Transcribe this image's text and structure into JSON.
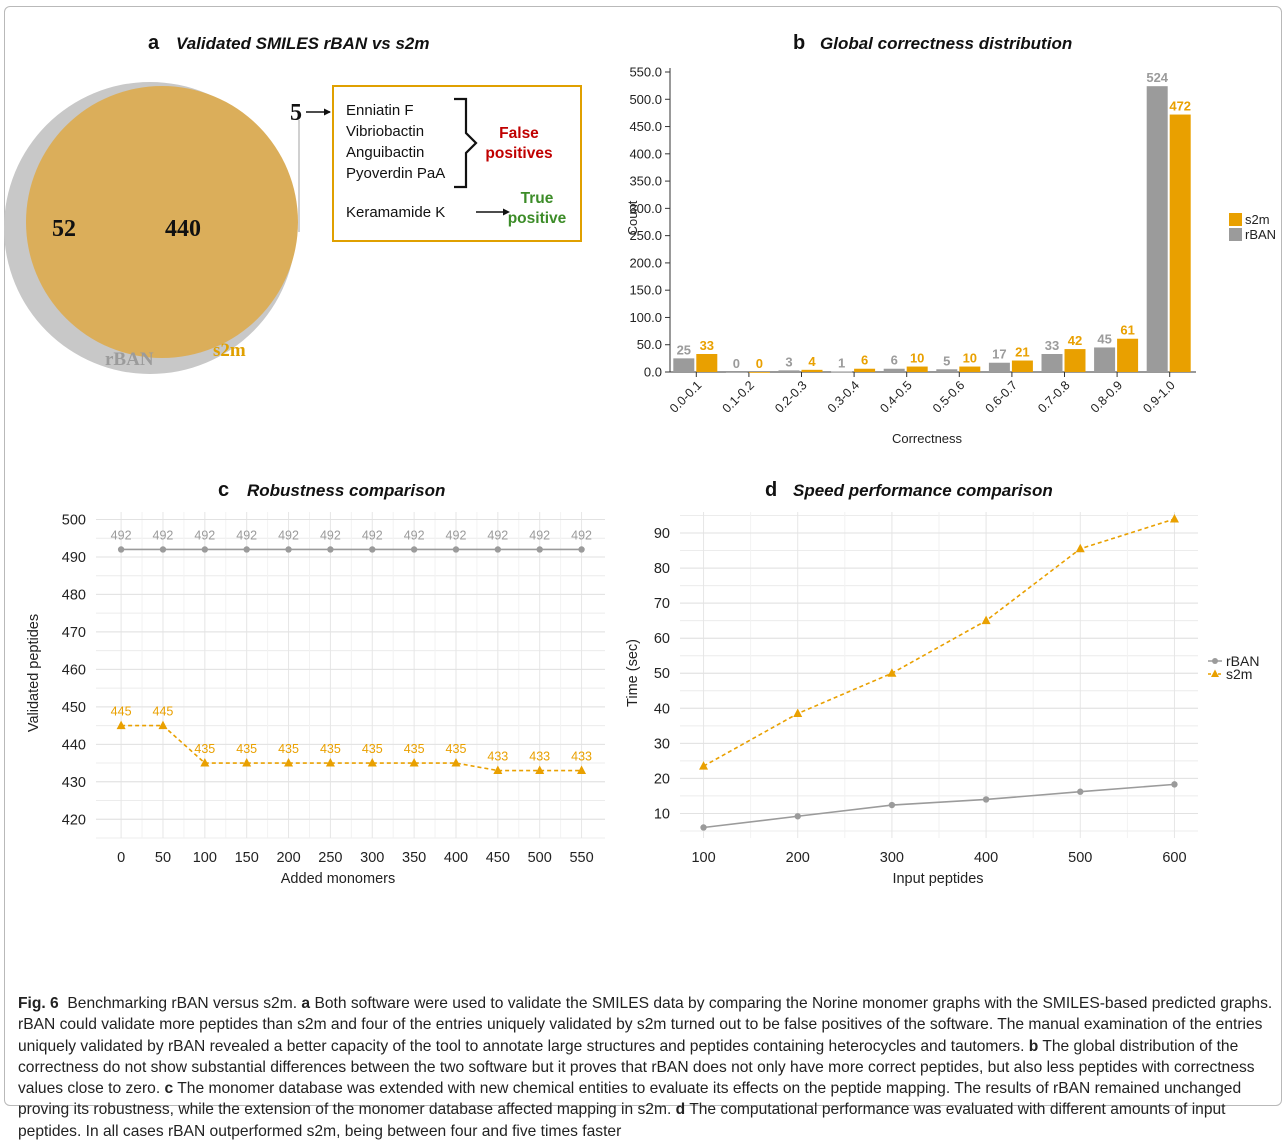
{
  "figure": {
    "caption_lead": "Fig. 6",
    "caption_title": "Benchmarking rBAN versus s2m.",
    "caption_parts": [
      {
        "letter": "a",
        "text": "Both software were used to validate the SMILES data by comparing the Norine monomer graphs with the SMILES-based predicted graphs. rBAN could validate more peptides than s2m and four of the entries uniquely validated by s2m turned out to be false positives of the software. The manual examination of the entries uniquely validated by rBAN revealed a better capacity of the tool to annotate large structures and peptides containing heterocycles and tautomers."
      },
      {
        "letter": "b",
        "text": "The global distribution of the correctness do not show substantial differences between the two software but it proves that rBAN does not only have more correct peptides, but also less peptides with correctness values close to zero."
      },
      {
        "letter": "c",
        "text": "The monomer database was extended with new chemical entities to evaluate its effects on the peptide mapping. The results of rBAN remained unchanged proving its robustness, while the extension of the monomer database affected mapping in s2m."
      },
      {
        "letter": "d",
        "text": "The computational performance was evaluated with different amounts of input peptides. In all cases rBAN outperformed s2m, being between four and five times faster"
      }
    ]
  },
  "colors": {
    "rban": "#9b9b9b",
    "s2m": "#e9a000",
    "venn_s2m": "#dbae5a",
    "venn_rban": "#c8c8c8",
    "false_pos": "#c00000",
    "true_pos": "#3c8c28"
  },
  "venn": {
    "letter": "a",
    "title": "Validated SMILES rBAN vs s2m",
    "only_rban": "52",
    "overlap": "440",
    "only_s2m": "5",
    "label_rban": "rBAN",
    "label_s2m": "s2m",
    "entries": [
      "Enniatin F",
      "Vibriobactin",
      "Anguibactin",
      "Pyoverdin PaA",
      "Keramamide K"
    ],
    "false_label": [
      "False",
      "positives"
    ],
    "true_label": [
      "True",
      "positive"
    ]
  },
  "chart_data": [
    {
      "type": "bar",
      "letter": "b",
      "title": "Global correctness distribution",
      "xlabel": "Correctness",
      "ylabel": "Count",
      "ylim": [
        0,
        550
      ],
      "yticks": [
        0,
        50,
        100,
        150,
        200,
        250,
        300,
        350,
        400,
        450,
        500,
        550
      ],
      "categories": [
        "0.0-0.1",
        "0.1-0.2",
        "0.2-0.3",
        "0.3-0.4",
        "0.4-0.5",
        "0.5-0.6",
        "0.6-0.7",
        "0.7-0.8",
        "0.8-0.9",
        "0.9-1.0"
      ],
      "series": [
        {
          "name": "rBAN",
          "values": [
            25,
            0,
            3,
            1,
            6,
            5,
            17,
            33,
            45,
            524
          ]
        },
        {
          "name": "s2m",
          "values": [
            33,
            0,
            4,
            6,
            10,
            10,
            21,
            42,
            61,
            472
          ]
        }
      ],
      "legend": [
        "s2m",
        "rBAN"
      ],
      "legend_position": "right"
    },
    {
      "type": "line",
      "letter": "c",
      "title": "Robustness comparison",
      "xlabel": "Added monomers",
      "ylabel": "Validated peptides",
      "ylim": [
        415,
        502
      ],
      "yticks": [
        420,
        430,
        440,
        450,
        460,
        470,
        480,
        490,
        500
      ],
      "x": [
        0,
        50,
        100,
        150,
        200,
        250,
        300,
        350,
        400,
        450,
        500,
        550
      ],
      "series": [
        {
          "name": "rBAN",
          "values": [
            492,
            492,
            492,
            492,
            492,
            492,
            492,
            492,
            492,
            492,
            492,
            492
          ]
        },
        {
          "name": "s2m",
          "values": [
            445,
            445,
            435,
            435,
            435,
            435,
            435,
            435,
            435,
            433,
            433,
            433
          ]
        }
      ],
      "grid": true
    },
    {
      "type": "line",
      "letter": "d",
      "title": "Speed performance comparison",
      "xlabel": "Input peptides",
      "ylabel": "Time (sec)",
      "ylim": [
        3,
        96
      ],
      "yticks": [
        10,
        20,
        30,
        40,
        50,
        60,
        70,
        80,
        90
      ],
      "xlim": [
        75,
        625
      ],
      "x": [
        100,
        200,
        300,
        400,
        500,
        600
      ],
      "series": [
        {
          "name": "rBAN",
          "values": [
            6,
            9.2,
            12.4,
            14,
            16.2,
            18.3
          ]
        },
        {
          "name": "s2m",
          "values": [
            23.5,
            38.5,
            50,
            65,
            85.5,
            94
          ]
        }
      ],
      "legend": [
        "rBAN",
        "s2m"
      ],
      "legend_position": "right",
      "grid": true
    }
  ]
}
